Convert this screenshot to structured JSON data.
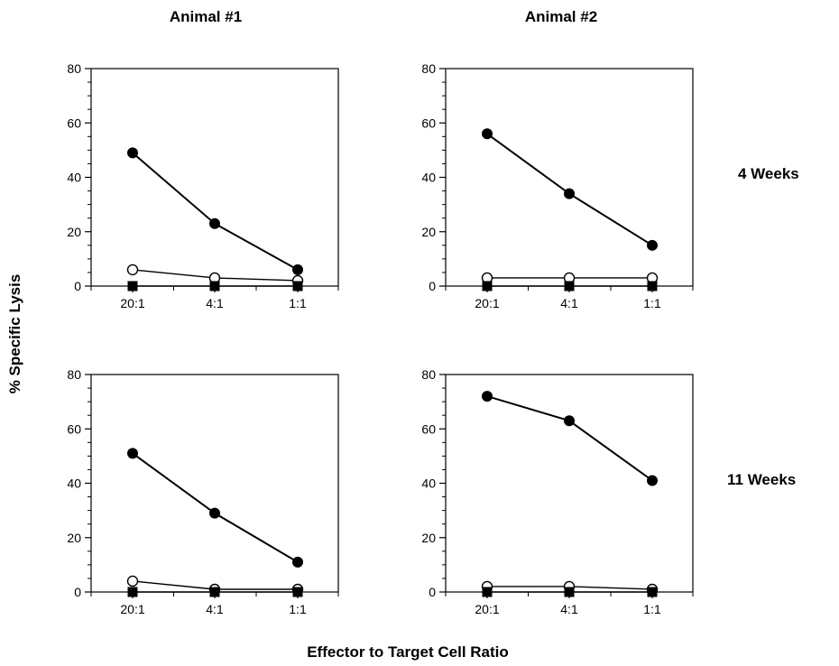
{
  "column_headers": [
    "Animal #1",
    "Animal #2"
  ],
  "row_labels": [
    "4 Weeks",
    "11 Weeks"
  ],
  "ylabel": "% Specific Lysis",
  "xlabel": "Effector to Target Cell Ratio",
  "colors": {
    "line": "#000000",
    "filled_marker": "#000000",
    "open_marker_fill": "#ffffff"
  },
  "chart_data": [
    {
      "type": "line",
      "column": "Animal #1",
      "row": "4 Weeks",
      "categories": [
        "20:1",
        "4:1",
        "1:1"
      ],
      "ylim": [
        0,
        80
      ],
      "yticks": [
        0,
        20,
        40,
        60,
        80
      ],
      "series": [
        {
          "marker": "filled-circle",
          "values": [
            49,
            23,
            6
          ]
        },
        {
          "marker": "open-circle",
          "values": [
            6,
            3,
            2
          ]
        },
        {
          "marker": "filled-square",
          "values": [
            0,
            0,
            0
          ]
        }
      ]
    },
    {
      "type": "line",
      "column": "Animal #2",
      "row": "4 Weeks",
      "categories": [
        "20:1",
        "4:1",
        "1:1"
      ],
      "ylim": [
        0,
        80
      ],
      "yticks": [
        0,
        20,
        40,
        60,
        80
      ],
      "series": [
        {
          "marker": "filled-circle",
          "values": [
            56,
            34,
            15
          ]
        },
        {
          "marker": "open-circle",
          "values": [
            3,
            3,
            3
          ]
        },
        {
          "marker": "filled-square",
          "values": [
            0,
            0,
            0
          ]
        }
      ]
    },
    {
      "type": "line",
      "column": "Animal #1",
      "row": "11 Weeks",
      "categories": [
        "20:1",
        "4:1",
        "1:1"
      ],
      "ylim": [
        0,
        80
      ],
      "yticks": [
        0,
        20,
        40,
        60,
        80
      ],
      "series": [
        {
          "marker": "filled-circle",
          "values": [
            51,
            29,
            11
          ]
        },
        {
          "marker": "open-circle",
          "values": [
            4,
            1,
            1
          ]
        },
        {
          "marker": "filled-square",
          "values": [
            0,
            0,
            0
          ]
        }
      ]
    },
    {
      "type": "line",
      "column": "Animal #2",
      "row": "11 Weeks",
      "categories": [
        "20:1",
        "4:1",
        "1:1"
      ],
      "ylim": [
        0,
        80
      ],
      "yticks": [
        0,
        20,
        40,
        60,
        80
      ],
      "series": [
        {
          "marker": "filled-circle",
          "values": [
            72,
            63,
            41
          ]
        },
        {
          "marker": "open-circle",
          "values": [
            2,
            2,
            1
          ]
        },
        {
          "marker": "filled-square",
          "values": [
            0,
            0,
            0
          ]
        }
      ]
    }
  ]
}
